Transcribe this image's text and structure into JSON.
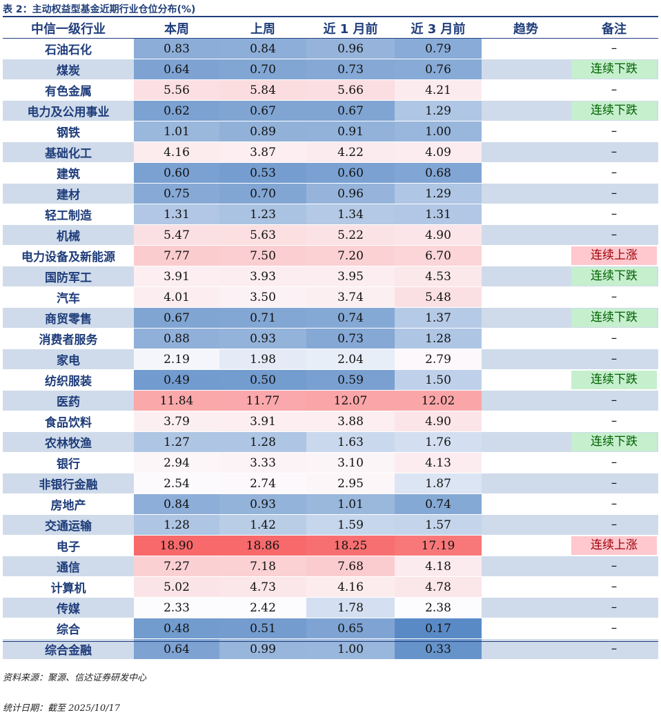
{
  "title": "表 2：主动权益型基金近期行业仓位分布(%)",
  "headers": [
    "中信一级行业",
    "本周",
    "上周",
    "近 1 月前",
    "近 3 月前",
    "趋势",
    "备注"
  ],
  "rows": [
    {
      "name": "石油石化",
      "vals": [
        "0.83",
        "0.84",
        "0.96",
        "0.79"
      ],
      "note": "–",
      "note_type": "dash"
    },
    {
      "name": "煤炭",
      "vals": [
        "0.64",
        "0.70",
        "0.73",
        "0.76"
      ],
      "note": "连续下跌",
      "note_type": "down"
    },
    {
      "name": "有色金属",
      "vals": [
        "5.56",
        "5.84",
        "5.66",
        "4.21"
      ],
      "note": "–",
      "note_type": "dash"
    },
    {
      "name": "电力及公用事业",
      "vals": [
        "0.62",
        "0.67",
        "0.67",
        "1.29"
      ],
      "note": "连续下跌",
      "note_type": "down"
    },
    {
      "name": "钢铁",
      "vals": [
        "1.01",
        "0.89",
        "0.91",
        "1.00"
      ],
      "note": "–",
      "note_type": "dash"
    },
    {
      "name": "基础化工",
      "vals": [
        "4.16",
        "3.87",
        "4.22",
        "4.09"
      ],
      "note": "–",
      "note_type": "dash"
    },
    {
      "name": "建筑",
      "vals": [
        "0.60",
        "0.53",
        "0.60",
        "0.68"
      ],
      "note": "–",
      "note_type": "dash"
    },
    {
      "name": "建材",
      "vals": [
        "0.75",
        "0.70",
        "0.96",
        "1.29"
      ],
      "note": "–",
      "note_type": "dash"
    },
    {
      "name": "轻工制造",
      "vals": [
        "1.31",
        "1.23",
        "1.34",
        "1.31"
      ],
      "note": "–",
      "note_type": "dash"
    },
    {
      "name": "机械",
      "vals": [
        "5.47",
        "5.63",
        "5.22",
        "4.90"
      ],
      "note": "–",
      "note_type": "dash"
    },
    {
      "name": "电力设备及新能源",
      "vals": [
        "7.77",
        "7.50",
        "7.20",
        "6.70"
      ],
      "note": "连续上涨",
      "note_type": "up"
    },
    {
      "name": "国防军工",
      "vals": [
        "3.91",
        "3.93",
        "3.95",
        "4.53"
      ],
      "note": "连续下跌",
      "note_type": "down"
    },
    {
      "name": "汽车",
      "vals": [
        "4.01",
        "3.50",
        "3.74",
        "5.48"
      ],
      "note": "–",
      "note_type": "dash"
    },
    {
      "name": "商贸零售",
      "vals": [
        "0.67",
        "0.71",
        "0.74",
        "1.37"
      ],
      "note": "连续下跌",
      "note_type": "down"
    },
    {
      "name": "消费者服务",
      "vals": [
        "0.88",
        "0.93",
        "0.73",
        "1.28"
      ],
      "note": "–",
      "note_type": "dash"
    },
    {
      "name": "家电",
      "vals": [
        "2.19",
        "1.98",
        "2.04",
        "2.79"
      ],
      "note": "–",
      "note_type": "dash"
    },
    {
      "name": "纺织服装",
      "vals": [
        "0.49",
        "0.50",
        "0.59",
        "1.50"
      ],
      "note": "连续下跌",
      "note_type": "down"
    },
    {
      "name": "医药",
      "vals": [
        "11.84",
        "11.77",
        "12.07",
        "12.02"
      ],
      "note": "–",
      "note_type": "dash"
    },
    {
      "name": "食品饮料",
      "vals": [
        "3.79",
        "3.91",
        "3.88",
        "4.90"
      ],
      "note": "–",
      "note_type": "dash"
    },
    {
      "name": "农林牧渔",
      "vals": [
        "1.27",
        "1.28",
        "1.63",
        "1.76"
      ],
      "note": "连续下跌",
      "note_type": "down"
    },
    {
      "name": "银行",
      "vals": [
        "2.94",
        "3.33",
        "3.10",
        "4.13"
      ],
      "note": "–",
      "note_type": "dash"
    },
    {
      "name": "非银行金融",
      "vals": [
        "2.54",
        "2.74",
        "2.95",
        "1.87"
      ],
      "note": "–",
      "note_type": "dash"
    },
    {
      "name": "房地产",
      "vals": [
        "0.84",
        "0.93",
        "1.01",
        "0.74"
      ],
      "note": "–",
      "note_type": "dash"
    },
    {
      "name": "交通运输",
      "vals": [
        "1.28",
        "1.42",
        "1.59",
        "1.57"
      ],
      "note": "–",
      "note_type": "dash"
    },
    {
      "name": "电子",
      "vals": [
        "18.90",
        "18.86",
        "18.25",
        "17.19"
      ],
      "note": "连续上涨",
      "note_type": "up"
    },
    {
      "name": "通信",
      "vals": [
        "7.27",
        "7.18",
        "7.68",
        "4.18"
      ],
      "note": "–",
      "note_type": "dash"
    },
    {
      "name": "计算机",
      "vals": [
        "5.02",
        "4.73",
        "4.16",
        "4.78"
      ],
      "note": "–",
      "note_type": "dash"
    },
    {
      "name": "传媒",
      "vals": [
        "2.33",
        "2.42",
        "1.78",
        "2.38"
      ],
      "note": "–",
      "note_type": "dash"
    },
    {
      "name": "综合",
      "vals": [
        "0.48",
        "0.51",
        "0.65",
        "0.17"
      ],
      "note": "–",
      "note_type": "dash"
    },
    {
      "name": "综合金融",
      "vals": [
        "0.64",
        "0.99",
        "1.00",
        "0.33"
      ],
      "note": "–",
      "note_type": "dash"
    }
  ],
  "source": "资料来源：聚源、信达证券研发中心",
  "date": "统计日期：截至 2025/10/17",
  "colors": {
    "low": "#5a8ac6",
    "mid": "#fcfcff",
    "high": "#f8696b",
    "header": "#1f3d7a",
    "band": "#cfdbea"
  }
}
